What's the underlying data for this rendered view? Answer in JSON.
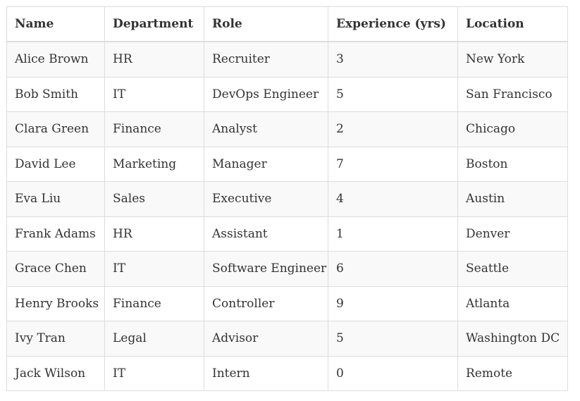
{
  "table": {
    "columns": [
      "Name",
      "Department",
      "Role",
      "Experience (yrs)",
      "Location"
    ],
    "rows": [
      [
        "Alice Brown",
        "HR",
        "Recruiter",
        "3",
        "New York"
      ],
      [
        "Bob Smith",
        "IT",
        "DevOps Engineer",
        "5",
        "San Francisco"
      ],
      [
        "Clara Green",
        "Finance",
        "Analyst",
        "2",
        "Chicago"
      ],
      [
        "David Lee",
        "Marketing",
        "Manager",
        "7",
        "Boston"
      ],
      [
        "Eva Liu",
        "Sales",
        "Executive",
        "4",
        "Austin"
      ],
      [
        "Frank Adams",
        "HR",
        "Assistant",
        "1",
        "Denver"
      ],
      [
        "Grace Chen",
        "IT",
        "Software Engineer",
        "6",
        "Seattle"
      ],
      [
        "Henry Brooks",
        "Finance",
        "Controller",
        "9",
        "Atlanta"
      ],
      [
        "Ivy Tran",
        "Legal",
        "Advisor",
        "5",
        "Washington DC"
      ],
      [
        "Jack Wilson",
        "IT",
        "Intern",
        "0",
        "Remote"
      ]
    ]
  },
  "colors": {
    "border": "#dddddd",
    "stripe": "#f9f9f9",
    "text": "#333333"
  }
}
